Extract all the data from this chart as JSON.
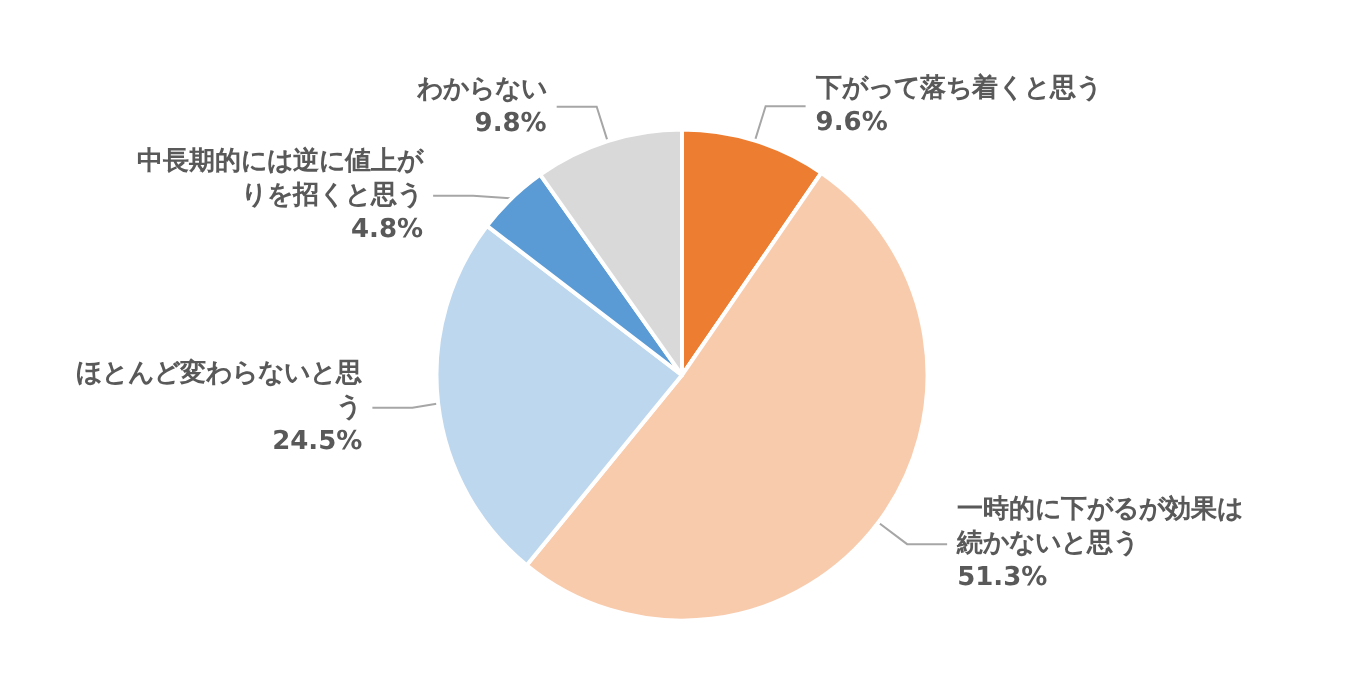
{
  "chart_data": {
    "type": "pie",
    "categories": [
      "下がって落ち着くと思う",
      "一時的に下がるが効果は続かないと思う",
      "ほとんど変わらないと思う",
      "中長期的には逆に値上がりを招くと思う",
      "わからない"
    ],
    "values": [
      9.6,
      51.3,
      24.5,
      4.8,
      9.8
    ],
    "value_labels": [
      "9.6%",
      "51.3%",
      "24.5%",
      "4.8%",
      "9.8%"
    ],
    "colors": [
      "#ed7d31",
      "#f8cbad",
      "#bdd7ee",
      "#5b9bd5",
      "#d9d9d9"
    ],
    "legend": false
  }
}
